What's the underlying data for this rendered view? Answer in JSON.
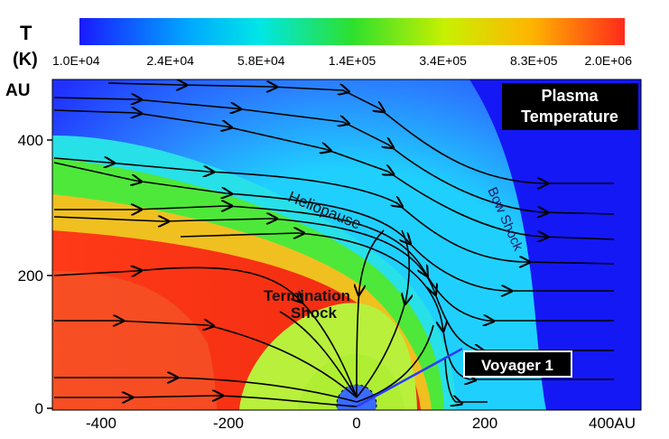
{
  "colorbar": {
    "title_line1": "T",
    "title_line2": "(K)",
    "ticks": [
      "1.0E+04",
      "2.4E+04",
      "5.8E+04",
      "1.4E+05",
      "3.4E+05",
      "8.3E+05",
      "2.0E+06"
    ],
    "colors": [
      "#1a1aff",
      "#00a8ff",
      "#00e6e6",
      "#2de02d",
      "#c8f000",
      "#ffb400",
      "#ff2a1a"
    ]
  },
  "axes": {
    "y_unit": "AU",
    "y_ticks": [
      "400",
      "200",
      "0"
    ],
    "x_ticks": [
      "-400",
      "-200",
      "0",
      "200",
      "400AU"
    ]
  },
  "panel_title": {
    "line1": "Plasma",
    "line2": "Temperature"
  },
  "labels": {
    "heliopause": "Heliopause",
    "bow_shock": "Bow Shock",
    "termination_line1": "Termination",
    "termination_line2": "Shock",
    "voyager": "Voyager 1"
  },
  "colors": {
    "blue_outer": "#1418f5",
    "heliosheath_red": "#f22a10",
    "inner_green": "#b8f03c",
    "voyager_line": "#2a3cff",
    "label_bg": "#000000"
  }
}
